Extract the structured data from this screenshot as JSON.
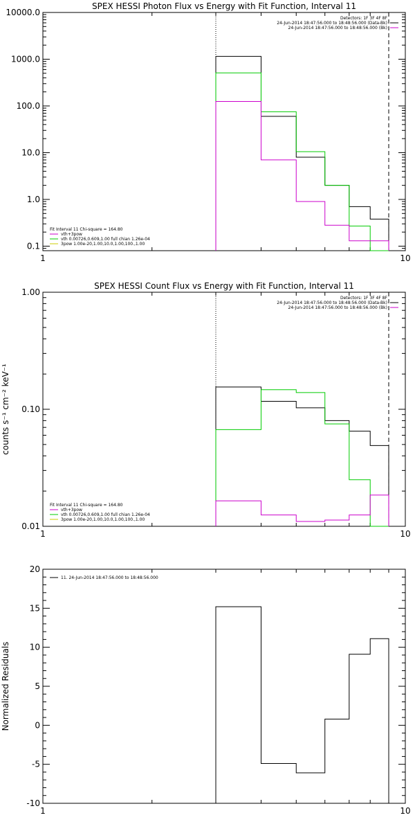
{
  "chart_data": [
    {
      "type": "line",
      "title": "SPEX HESSI Photon Flux vs Energy with Fit Function, Interval 11",
      "ylabel": "",
      "xscale": "log",
      "yscale": "log",
      "xlim": [
        1,
        10
      ],
      "ylim": [
        0.08,
        10000.0
      ],
      "x_tick_labels": [
        {
          "v": 1,
          "t": "1"
        },
        {
          "v": 10,
          "t": "10"
        }
      ],
      "y_tick_labels": [
        {
          "v": 0.1,
          "t": "0.1"
        },
        {
          "v": 1,
          "t": "1.0"
        },
        {
          "v": 10,
          "t": "10.0"
        },
        {
          "v": 100,
          "t": "100.0"
        },
        {
          "v": 1000,
          "t": "1000.0"
        },
        {
          "v": 10000,
          "t": "10000.0"
        }
      ],
      "vlines": [
        {
          "x": 3.0,
          "style": "dotted"
        },
        {
          "x": 9.0,
          "style": "dashed"
        }
      ],
      "legend_top_right": [
        {
          "text": "Detectors: 1F 3F 4F 8F",
          "color": ""
        },
        {
          "text": "24-Jun-2014 18:47:56.000 to 18:48:56.000 (Data-Bk)",
          "color": "#000000"
        },
        {
          "text": "24-Jun-2014 18:47:56.000 to 18:48:56.000 (Bk)",
          "color": "#cc00cc"
        }
      ],
      "legend_bottom_left": [
        {
          "text": "Fit Interval 11   Chi-square = 164.80",
          "color": ""
        },
        {
          "text": "vth+3pow",
          "color": "#cc00cc"
        },
        {
          "text": "vth 0.00726,0.609,1.00  full chian 1.26e-04",
          "color": "#00cc00"
        },
        {
          "text": "3pow 1.00e-20,1.00,10.0,1.00,100.,1.00",
          "color": "#cccc00"
        }
      ],
      "edges": [
        3.0,
        4.0,
        5.0,
        6.0,
        7.0,
        8.0,
        9.0
      ],
      "series": [
        {
          "color": "#000000",
          "values": [
            1150,
            60,
            8.0,
            2.0,
            0.7,
            0.38
          ],
          "drop_to": 0.08
        },
        {
          "color": "#00cc00",
          "values": [
            510,
            75,
            10.5,
            2.0,
            0.27,
            0.08
          ],
          "drop_to": 0.08
        },
        {
          "color": "#cc00cc",
          "values": [
            125,
            7.0,
            0.9,
            0.28,
            0.13,
            0.13
          ],
          "drop_to": 0.08
        }
      ]
    },
    {
      "type": "line",
      "title": "SPEX HESSI Count Flux vs Energy with Fit Function, Interval 11",
      "ylabel": "counts s⁻¹ cm⁻² keV⁻¹",
      "xscale": "log",
      "yscale": "log",
      "xlim": [
        1,
        10
      ],
      "ylim": [
        0.01,
        1.0
      ],
      "x_tick_labels": [
        {
          "v": 1,
          "t": "1"
        },
        {
          "v": 10,
          "t": "10"
        }
      ],
      "y_tick_labels": [
        {
          "v": 0.01,
          "t": "0.01"
        },
        {
          "v": 0.1,
          "t": "0.10"
        },
        {
          "v": 1,
          "t": "1.00"
        }
      ],
      "vlines": [
        {
          "x": 3.0,
          "style": "dotted"
        },
        {
          "x": 9.0,
          "style": "dashed"
        }
      ],
      "legend_top_right": [
        {
          "text": "Detectors: 1F 3F 4F 8F",
          "color": ""
        },
        {
          "text": "24-Jun-2014 18:47:56.000 to 18:48:56.000 (Data-Bk)",
          "color": "#000000"
        },
        {
          "text": "24-Jun-2014 18:47:56.000 to 18:48:56.000 (Bk)",
          "color": "#cc00cc"
        }
      ],
      "legend_bottom_left": [
        {
          "text": "Fit Interval 11   Chi-square = 164.80",
          "color": ""
        },
        {
          "text": "vth+3pow",
          "color": "#cc00cc"
        },
        {
          "text": "vth 0.00726,0.609,1.00  full chian 1.26e-04",
          "color": "#00cc00"
        },
        {
          "text": "3pow 1.00e-20,1.00,10.0,1.00,100.,1.00",
          "color": "#cccc00"
        }
      ],
      "edges": [
        3.0,
        4.0,
        5.0,
        6.0,
        7.0,
        8.0,
        9.0
      ],
      "series": [
        {
          "color": "#000000",
          "values": [
            0.155,
            0.117,
            0.103,
            0.08,
            0.065,
            0.049
          ],
          "drop_to": 0.01
        },
        {
          "color": "#00cc00",
          "values": [
            0.067,
            0.147,
            0.139,
            0.075,
            0.025,
            0.01
          ],
          "drop_to": 0.01
        },
        {
          "color": "#cc00cc",
          "values": [
            0.0165,
            0.0125,
            0.011,
            0.0113,
            0.0125,
            0.0185
          ],
          "drop_to": 0.01
        }
      ]
    },
    {
      "type": "line",
      "title": "",
      "ylabel": "Normalized Residuals",
      "xscale": "log",
      "yscale": "linear",
      "xlim": [
        1,
        10
      ],
      "ylim": [
        -10,
        20
      ],
      "x_tick_labels": [
        {
          "v": 1,
          "t": "1"
        },
        {
          "v": 10,
          "t": "10"
        }
      ],
      "y_tick_labels": [
        {
          "v": -10,
          "t": "-10"
        },
        {
          "v": -5,
          "t": "-5"
        },
        {
          "v": 0,
          "t": "0"
        },
        {
          "v": 5,
          "t": "5"
        },
        {
          "v": 10,
          "t": "10"
        },
        {
          "v": 15,
          "t": "15"
        },
        {
          "v": 20,
          "t": "20"
        }
      ],
      "vlines": [],
      "legend_top_left": [
        {
          "text": "11. 24-Jun-2014 18:47:56.000 to 18:48:56.000",
          "color": "#000000"
        }
      ],
      "edges": [
        3.0,
        4.0,
        5.0,
        6.0,
        7.0,
        8.0,
        9.0
      ],
      "series": [
        {
          "color": "#000000",
          "values": [
            15.2,
            -4.9,
            -6.1,
            0.8,
            9.1,
            11.1
          ],
          "drop_to": -10
        }
      ]
    }
  ]
}
